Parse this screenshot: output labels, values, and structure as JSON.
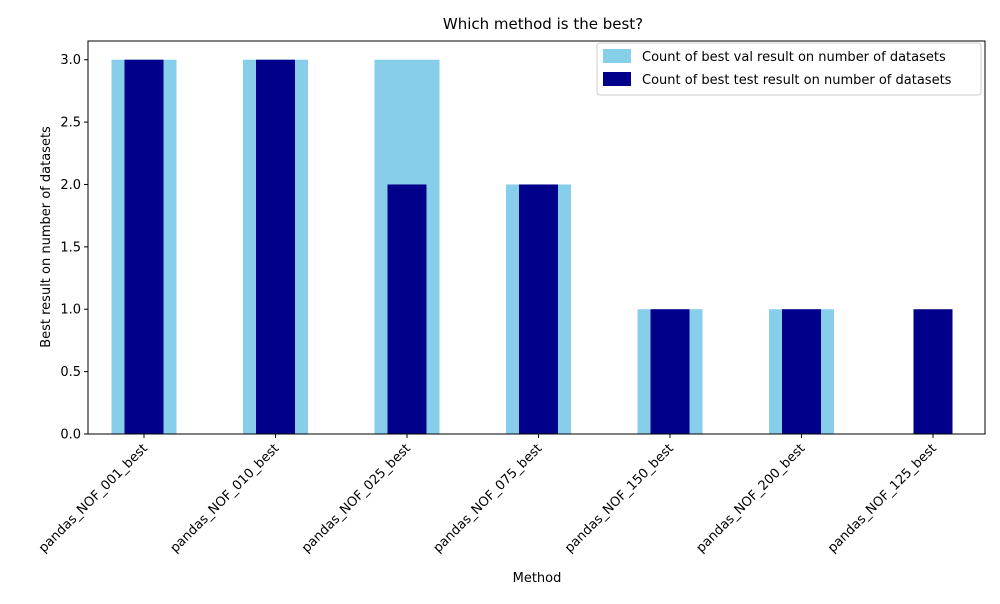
{
  "chart_data": {
    "type": "bar",
    "title": "Which method is the best?",
    "xlabel": "Method",
    "ylabel": "Best result on number of datasets",
    "categories": [
      "pandas_NOF_001_best",
      "pandas_NOF_010_best",
      "pandas_NOF_025_best",
      "pandas_NOF_075_best",
      "pandas_NOF_150_best",
      "pandas_NOF_200_best",
      "pandas_NOF_125_best"
    ],
    "series": [
      {
        "name": "Count of best val result on number of datasets",
        "color": "#87ceeb",
        "values": [
          3,
          3,
          3,
          2,
          1,
          1,
          0
        ]
      },
      {
        "name": "Count of best test result on number of datasets",
        "color": "#00008b",
        "values": [
          3,
          3,
          2,
          2,
          1,
          1,
          1
        ]
      }
    ],
    "yticks": [
      "0.0",
      "0.5",
      "1.0",
      "1.5",
      "2.0",
      "2.5",
      "3.0"
    ],
    "ylim": [
      0,
      3.15
    ],
    "grid": false,
    "legend_position": "top-right"
  }
}
